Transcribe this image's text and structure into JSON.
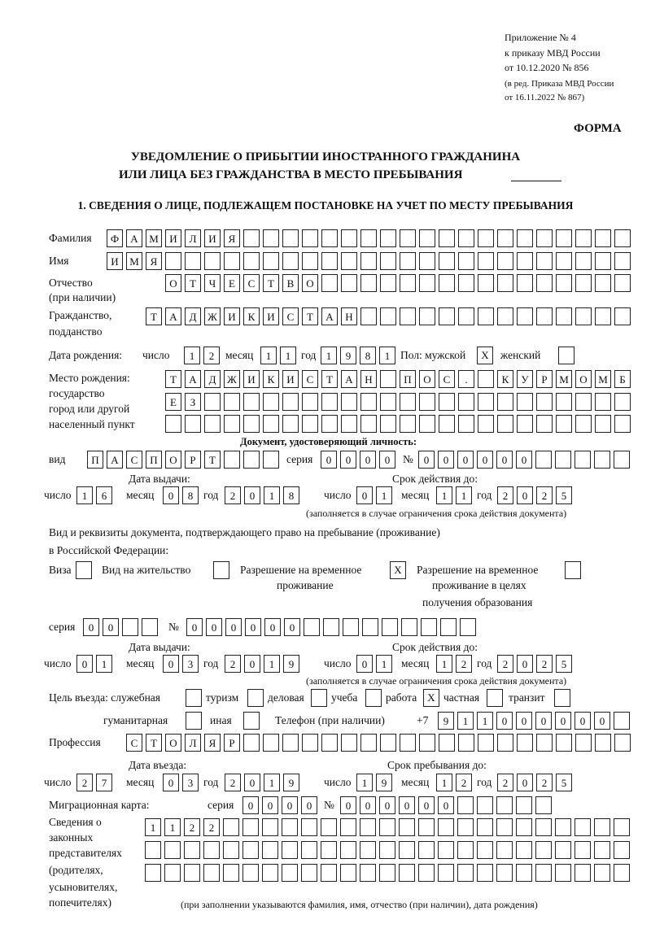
{
  "header": {
    "appendix": "Приложение № 4",
    "order": "к приказу МВД России",
    "order_date": "от 10.12.2020 № 856",
    "edition_1": "(в ред. Приказа МВД России",
    "edition_2": "от 16.11.2022 № 867)",
    "form_label": "ФОРМА",
    "title_1": "УВЕДОМЛЕНИЕ О ПРИБЫТИИ ИНОСТРАННОГО ГРАЖДАНИНА",
    "title_2": "ИЛИ ЛИЦА БЕЗ ГРАЖДАНСТВА В МЕСТО ПРЕБЫВАНИЯ",
    "section_1": "1. СВЕДЕНИЯ О ЛИЦЕ, ПОДЛЕЖАЩЕМ ПОСТАНОВКЕ НА УЧЕТ ПО МЕСТУ ПРЕБЫВАНИЯ"
  },
  "person": {
    "surname_label": "Фамилия",
    "surname": [
      "Ф",
      "А",
      "М",
      "И",
      "Л",
      "И",
      "Я"
    ],
    "name_label": "Имя",
    "name": [
      "И",
      "М",
      "Я"
    ],
    "patronymic_label_1": "Отчество",
    "patronymic_label_2": "(при наличии)",
    "patronymic": [
      "О",
      "Т",
      "Ч",
      "Е",
      "С",
      "Т",
      "В",
      "О"
    ],
    "citizenship_label_1": "Гражданство,",
    "citizenship_label_2": "подданство",
    "citizenship": [
      "Т",
      "А",
      "Д",
      "Ж",
      "И",
      "К",
      "И",
      "С",
      "Т",
      "А",
      "Н"
    ],
    "birth": {
      "label": "Дата рождения:",
      "day_label": "число",
      "day": [
        "1",
        "2"
      ],
      "month_label": "месяц",
      "month": [
        "1",
        "1"
      ],
      "year_label": "год",
      "year": [
        "1",
        "9",
        "8",
        "1"
      ],
      "sex_label": "Пол: мужской",
      "male": "X",
      "female_label": "женский",
      "female": ""
    },
    "birthplace": {
      "label_1": "Место рождения:",
      "label_2": "государство",
      "label_3": "город или другой",
      "label_4": "населенный пункт",
      "line_1": [
        "Т",
        "А",
        "Д",
        "Ж",
        "И",
        "К",
        "И",
        "С",
        "Т",
        "А",
        "Н",
        "",
        "П",
        "О",
        "С",
        ".",
        "",
        "К",
        "У",
        "Р",
        "М",
        "О",
        "М",
        "Б"
      ],
      "line_2": [
        "Е",
        "З"
      ],
      "line_3": []
    }
  },
  "id_document": {
    "heading": "Документ, удостоверяющий личность:",
    "kind_label": "вид",
    "kind": [
      "П",
      "А",
      "С",
      "П",
      "О",
      "Р",
      "Т"
    ],
    "series_label": "серия",
    "series": [
      "0",
      "0",
      "0",
      "0"
    ],
    "number_label": "№",
    "number": [
      "0",
      "0",
      "0",
      "0",
      "0",
      "0"
    ],
    "issue_label": "Дата выдачи:",
    "issue": {
      "day_label": "число",
      "day": [
        "1",
        "6"
      ],
      "month_label": "месяц",
      "month": [
        "0",
        "8"
      ],
      "year_label": "год",
      "year": [
        "2",
        "0",
        "1",
        "8"
      ]
    },
    "valid_label": "Срок действия до:",
    "valid": {
      "day_label": "число",
      "day": [
        "0",
        "1"
      ],
      "month_label": "месяц",
      "month": [
        "1",
        "1"
      ],
      "year_label": "год",
      "year": [
        "2",
        "0",
        "2",
        "5"
      ]
    },
    "note": "(заполняется в случае ограничения срока действия документа)"
  },
  "stay_document": {
    "intro_1": "Вид и реквизиты документа, подтверждающего право на пребывание (проживание)",
    "intro_2": "в Российской Федерации:",
    "visa_label": "Виза",
    "visa": "",
    "residence_label": "Вид на жительство",
    "residence": "",
    "temp_label_1": "Разрешение на временное",
    "temp_label_2": "проживание",
    "temp": "X",
    "edu_label_1": "Разрешение на временное",
    "edu_label_2": "проживание в целях",
    "edu_label_3": "получения образования",
    "edu": "",
    "series_label": "серия",
    "series": [
      "0",
      "0"
    ],
    "number_label": "№",
    "number": [
      "0",
      "0",
      "0",
      "0",
      "0",
      "0"
    ],
    "issue_label": "Дата выдачи:",
    "issue": {
      "day_label": "число",
      "day": [
        "0",
        "1"
      ],
      "month_label": "месяц",
      "month": [
        "0",
        "3"
      ],
      "year_label": "год",
      "year": [
        "2",
        "0",
        "1",
        "9"
      ]
    },
    "valid_label": "Срок действия до:",
    "valid": {
      "day_label": "число",
      "day": [
        "0",
        "1"
      ],
      "month_label": "месяц",
      "month": [
        "1",
        "2"
      ],
      "year_label": "год",
      "year": [
        "2",
        "0",
        "2",
        "5"
      ]
    },
    "note": "(заполняется в случае ограничения срока действия документа)"
  },
  "purpose": {
    "label": "Цель въезда: служебная",
    "official": "",
    "tourism_label": "туризм",
    "tourism": "",
    "business_label": "деловая",
    "business": "",
    "study_label": "учеба",
    "study": "",
    "work_label": "работа",
    "work": "X",
    "private_label": "частная",
    "private": "",
    "transit_label": "транзит",
    "transit": "",
    "humanitarian_label": "гуманитарная",
    "humanitarian": "",
    "other_label": "иная",
    "other": ""
  },
  "phone": {
    "label": "Телефон (при наличии)",
    "prefix": "+7",
    "digits": [
      "9",
      "1",
      "1",
      "0",
      "0",
      "0",
      "0",
      "0",
      "0"
    ]
  },
  "profession": {
    "label": "Профессия",
    "value": [
      "С",
      "Т",
      "О",
      "Л",
      "Я",
      "Р"
    ]
  },
  "entry": {
    "entry_label": "Дата въезда:",
    "entry": {
      "day_label": "число",
      "day": [
        "2",
        "7"
      ],
      "month_label": "месяц",
      "month": [
        "0",
        "3"
      ],
      "year_label": "год",
      "year": [
        "2",
        "0",
        "1",
        "9"
      ]
    },
    "stay_until_label": "Срок пребывания до:",
    "stay_until": {
      "day_label": "число",
      "day": [
        "1",
        "9"
      ],
      "month_label": "месяц",
      "month": [
        "1",
        "2"
      ],
      "year_label": "год",
      "year": [
        "2",
        "0",
        "2",
        "5"
      ]
    }
  },
  "migration_card": {
    "label": "Миграционная карта:",
    "series_label": "серия",
    "series": [
      "0",
      "0",
      "0",
      "0"
    ],
    "number_label": "№",
    "number": [
      "0",
      "0",
      "0",
      "0",
      "0",
      "0"
    ]
  },
  "representatives": {
    "label_1": "Сведения о",
    "label_2": "законных",
    "label_3": "представителях",
    "label_4": "(родителях,",
    "label_5": "усыновителях,",
    "label_6": "попечителях)",
    "line_1": [
      "1",
      "1",
      "2",
      "2"
    ],
    "line_2": [],
    "line_3": [],
    "note": "(при заполнении указываются фамилия, имя, отчество (при наличии), дата рождения)"
  }
}
